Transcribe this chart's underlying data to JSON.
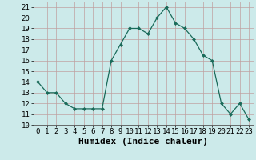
{
  "x": [
    0,
    1,
    2,
    3,
    4,
    5,
    6,
    7,
    8,
    9,
    10,
    11,
    12,
    13,
    14,
    15,
    16,
    17,
    18,
    19,
    20,
    21,
    22,
    23
  ],
  "y": [
    14,
    13,
    13,
    12,
    11.5,
    11.5,
    11.5,
    11.5,
    16,
    17.5,
    19,
    19,
    18.5,
    20,
    21,
    19.5,
    19,
    18,
    16.5,
    16,
    12,
    11,
    12,
    10.5
  ],
  "xlim": [
    -0.5,
    23.5
  ],
  "ylim": [
    10,
    21.5
  ],
  "yticks": [
    10,
    11,
    12,
    13,
    14,
    15,
    16,
    17,
    18,
    19,
    20,
    21
  ],
  "xticks": [
    0,
    1,
    2,
    3,
    4,
    5,
    6,
    7,
    8,
    9,
    10,
    11,
    12,
    13,
    14,
    15,
    16,
    17,
    18,
    19,
    20,
    21,
    22,
    23
  ],
  "xlabel": "Humidex (Indice chaleur)",
  "line_color": "#1a6b5a",
  "marker": "D",
  "marker_size": 2.0,
  "background_color": "#cceaea",
  "grid_color": "#c0a0a0",
  "tick_fontsize": 6.5,
  "xlabel_fontsize": 8
}
